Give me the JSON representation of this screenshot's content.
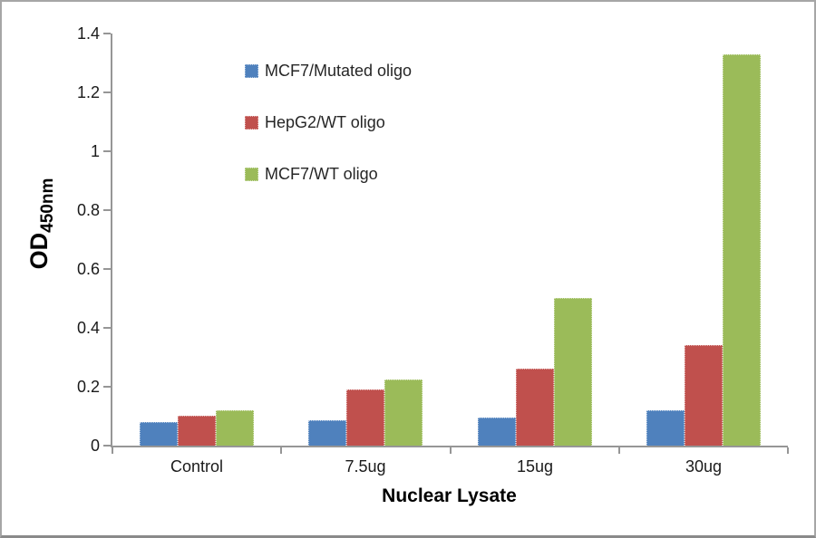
{
  "chart_data": {
    "type": "bar",
    "title": "",
    "xlabel": "Nuclear Lysate",
    "ylabel": "OD",
    "ylabel_subscript": "450nm",
    "ylim": [
      0,
      1.4
    ],
    "ytick_step": 0.2,
    "yticks": [
      0,
      0.2,
      0.4,
      0.6,
      0.8,
      1,
      1.2,
      1.4
    ],
    "ytick_labels": [
      "0",
      "0.2",
      "0.4",
      "0.6",
      "0.8",
      "1",
      "1.2",
      "1.4"
    ],
    "categories": [
      "Control",
      "7.5ug",
      "15ug",
      "30ug"
    ],
    "series": [
      {
        "name": "MCF7/Mutated oligo",
        "color": "#4f81bd",
        "border_color": "#b8cce4",
        "values": [
          0.08,
          0.085,
          0.095,
          0.12
        ]
      },
      {
        "name": "HepG2/WT oligo",
        "color": "#c0504d",
        "border_color": "#e6b8b7",
        "values": [
          0.1,
          0.19,
          0.26,
          0.34
        ]
      },
      {
        "name": "MCF7/WT oligo",
        "color": "#9bbb59",
        "border_color": "#d6e4bc",
        "values": [
          0.12,
          0.225,
          0.5,
          1.33
        ]
      }
    ],
    "legend_position": "inside-top-center",
    "grid": false
  }
}
